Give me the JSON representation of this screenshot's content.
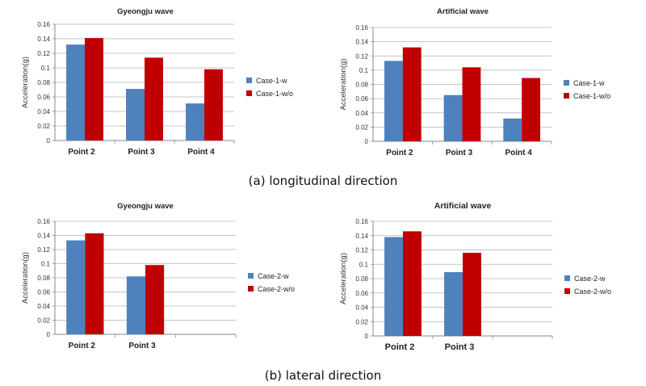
{
  "captions": {
    "a": "(a) longitudinal direction",
    "b": "(b) lateral direction"
  },
  "colors": {
    "w": "#4F81BD",
    "wo": "#C00000",
    "grid": "#B0B0B0",
    "axis": "#888888"
  },
  "chart_data": [
    {
      "type": "bar",
      "title": "Gyeongju wave",
      "xlabel": "",
      "ylabel": "Acceleration(g)",
      "ylim": [
        0,
        0.16
      ],
      "yticks": [
        "0",
        "0.02",
        "0.04",
        "0.06",
        "0.08",
        "0.1",
        "0.12",
        "0.14",
        "0.16"
      ],
      "categories": [
        "Point 2",
        "Point 3",
        "Point 4"
      ],
      "series": [
        {
          "name": "Case-1-w",
          "values": [
            0.132,
            0.071,
            0.051
          ]
        },
        {
          "name": "Case-1-w/o",
          "values": [
            0.141,
            0.114,
            0.098
          ]
        }
      ],
      "legend": "right",
      "grid": true
    },
    {
      "type": "bar",
      "title": "Artificial wave",
      "xlabel": "",
      "ylabel": "Acceleration(g)",
      "ylim": [
        0,
        0.16
      ],
      "yticks": [
        "0",
        "0.02",
        "0.04",
        "0.06",
        "0.08",
        "0.1",
        "0.12",
        "0.14",
        "0.16"
      ],
      "categories": [
        "Point 2",
        "Point 3",
        "Point 4"
      ],
      "series": [
        {
          "name": "Case-1-w",
          "values": [
            0.113,
            0.065,
            0.032
          ]
        },
        {
          "name": "Case-1-w/o",
          "values": [
            0.132,
            0.104,
            0.089
          ]
        }
      ],
      "legend": "right",
      "grid": true
    },
    {
      "type": "bar",
      "title": "Gyeongju wave",
      "xlabel": "",
      "ylabel": "Acceleration(g)",
      "ylim": [
        0,
        0.16
      ],
      "yticks": [
        "0",
        "0.02",
        "0.04",
        "0.06",
        "0.08",
        "0.1",
        "0.12",
        "0.14",
        "0.16"
      ],
      "categories": [
        "Point 2",
        "Point 3",
        ""
      ],
      "series": [
        {
          "name": "Case-2-w",
          "values": [
            0.133,
            0.082,
            null
          ]
        },
        {
          "name": "Case-2-w/o",
          "values": [
            0.143,
            0.098,
            null
          ]
        }
      ],
      "legend": "right",
      "grid": true
    },
    {
      "type": "bar",
      "title": "Artificial wave",
      "xlabel": "",
      "ylabel": "Acceleration(g)",
      "ylim": [
        0,
        0.16
      ],
      "yticks": [
        "0",
        "0.02",
        "0.04",
        "0.06",
        "0.08",
        "0.1",
        "0.12",
        "0.14",
        "0.16"
      ],
      "categories": [
        "Point 2",
        "Point 3",
        ""
      ],
      "series": [
        {
          "name": "Case-2-w",
          "values": [
            0.138,
            0.089,
            null
          ]
        },
        {
          "name": "Case-2-w/o",
          "values": [
            0.146,
            0.116,
            null
          ]
        }
      ],
      "legend": "right",
      "grid": true
    }
  ]
}
